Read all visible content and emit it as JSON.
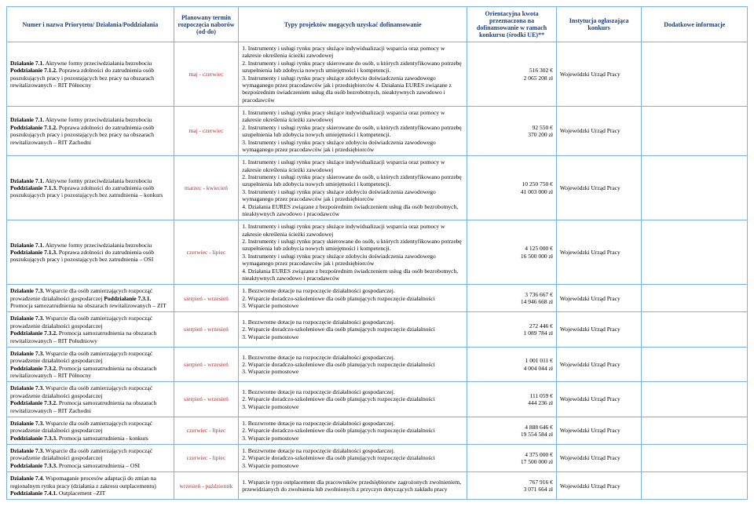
{
  "headers": {
    "c1": "Numer i nazwa Priorytetu/\nDziałania/Poddziałania",
    "c2": "Planowany termin\nrozpoczęcia naborów\n(od-do)",
    "c3": "Typy projektów mogących uzyskać dofinansowanie",
    "c4": "Orientacyjna kwota przeznaczona\nna dofinansowanie w ramach\nkonkursu (środki UE)**",
    "c5": "Instytucja ogłaszająca konkurs",
    "c6": "Dodatkowe informacje"
  },
  "rows": [
    {
      "name": "Działanie 7.1. Aktywne formy przeciwdziałania bezrobociu\nPoddziałanie 7.1.2. Poprawa zdolności do zatrudnienia osób poszukujących pracy i pozostających bez pracy na obszarach rewitalizowanych – RIT Północny",
      "term": "maj - czerwiec",
      "types": "1. Instrumenty i usługi rynku pracy służące indywidualizacji wsparcia oraz pomocy w zakresie określenia ścieżki zawodowej\n2. Instrumenty i usługi rynku pracy skierowane do osób, u których zidentyfikowano potrzebę uzupełnienia lub zdobycia nowych umiejętności i kompetencji.\n3. Instrumenty i usługi rynku pracy służące zdobyciu doświadczenia zawodowego wymaganego przez pracodawców jak i przedsiębiorców          4. Działania EURES związane z bezpośrednim świadczeniem usług dla osób bezrobotnych, nieaktywnych zawodowo i pracodawców",
      "amount": "516 302 €\n2 065 208 zł",
      "inst": "Wojewódzki Urząd Pracy",
      "extra": ""
    },
    {
      "name": "Działanie 7.1. Aktywne formy przeciwdziałania bezrobociu\nPoddziałanie 7.1.2. Poprawa zdolności do zatrudnienia osób poszukujących pracy i pozostających bez pracy na obszarach rewitalizowanych – RIT Zachodni",
      "term": "maj - czerwiec",
      "types": "1. Instrumenty i usługi rynku pracy służące indywidualizacji wsparcia oraz pomocy w zakresie określenia ścieżki zawodowej\n2. Instrumenty i usługi rynku pracy skierowane do osób, u których zidentyfikowano potrzebę uzupełnienia lub zdobycia nowych umiejętności i kompetencji.\n3. Instrumenty i usługi rynku pracy służące zdobyciu doświadczenia zawodowego wymaganego przez pracodawców jak i przedsiębiorców",
      "amount": "92 550 €\n370 200 zł",
      "inst": "Wojewódzki Urząd Pracy",
      "extra": ""
    },
    {
      "name": "Działanie 7.1. Aktywne formy przeciwdziałania bezrobociu\nPoddziałanie 7.1.3. Poprawa zdolności do zatrudnienia osób poszukujących pracy i pozostających bez zatrudnienia – konkurs",
      "term": "marzec - kwiecień",
      "types": "1. Instrumenty i usługi rynku pracy służące indywidualizacji wsparcia oraz pomocy w zakresie określenia ścieżki zawodowej\n2. Instrumenty i usługi rynku pracy skierowane do osób, u których zidentyfikowano potrzebę uzupełnienia lub zdobycia nowych umiejętności i kompetencji.\n3. Instrumenty i usługi rynku pracy służące zdobyciu doświadczenia zawodowego wymaganego przez pracodawców jak i przedsiębiorców\n4. Działania EURES związane z bezpośrednim świadczeniem usług dla osób bezrobotnych, nieaktywnych zawodowo i pracodawców",
      "amount": "10 250 750 €\n41 003 000 zł",
      "inst": "Wojewódzki Urząd Pracy",
      "extra": ""
    },
    {
      "name": "Działanie 7.1. Aktywne formy przeciwdziałania bezrobociu\nPoddziałanie 7.1.3. Poprawa zdolności do zatrudnienia osób poszukujących pracy i pozostających bez zatrudnienia – OSI",
      "term": "czerwiec - lipiec",
      "types": "1. Instrumenty i usługi rynku pracy służące indywidualizacji wsparcia oraz pomocy w zakresie określenia ścieżki zawodowej\n2. Instrumenty i usługi rynku pracy skierowane do osób, u których zidentyfikowano potrzebę uzupełnienia lub zdobycia nowych umiejętności i kompetencji.\n3. Instrumenty i usługi rynku pracy służące zdobyciu doświadczenia zawodowego wymaganego przez pracodawców jak i przedsiębiorców\n4. Działania EURES związane z bezpośrednim świadczeniem usług dla osób bezrobotnych, nieaktywnych zawodowo i pracodawców",
      "amount": "4 125 000 €\n16 500 000 zł",
      "inst": "Wojewódzki Urząd Pracy",
      "extra": ""
    },
    {
      "name": "Działanie 7.3. Wsparcie dla osób zamierzających rozpocząć prowadzenie działalności gospodarczej Poddziałanie 7.3.1. Promocja samozatrudnienia na obszarach rewitalizowanych – ZIT",
      "term": "sierpień - wrzesień",
      "types": "1. Bezzwrotne dotacje na rozpoczęcie działalności gospodarczej.\n2. Wsparcie doradczo-szkoleniowe dla osób planujących rozpoczęcie działalności\n3. Wsparcie pomostowe",
      "amount": "3 736 667 €\n14 946 668 zł",
      "inst": "Wojewódzki Urząd Pracy",
      "extra": ""
    },
    {
      "name": "Działanie 7.3. Wsparcie dla osób zamierzających rozpocząć prowadzenie działalności gospodarczej\nPoddziałanie 7.3.2. Promocja samozatrudnienia na obszarach rewitalizowanych – RIT Południowy",
      "term": "sierpień - wrzesień",
      "types": "1. Bezzwrotne dotacje na rozpoczęcie działalności gospodarczej.\n2. Wsparcie doradczo-szkoleniowe dla osób planujących rozpoczęcie działalności\n3. Wsparcie pomostowe",
      "amount": "272 446 €\n1 089 784 zł",
      "inst": "Wojewódzki Urząd Pracy",
      "extra": ""
    },
    {
      "name": "Działanie 7.3. Wsparcie dla osób zamierzających rozpocząć prowadzenie działalności gospodarczej\nPoddziałanie 7.3.2. Promocja samozatrudnienia na obszarach rewitalizowanych – RIT Północny",
      "term": "sierpień - wrzesień",
      "types": "1. Bezzwrotne dotacje na rozpoczęcie działalności gospodarczej.\n2. Wsparcie doradczo-szkoleniowe dla osób planujących rozpoczęcie działalności\n3. Wsparcie pomostowe",
      "amount": "1 001 011 €\n4 004 044 zł",
      "inst": "Wojewódzki Urząd Pracy",
      "extra": ""
    },
    {
      "name": "Działanie 7.3. Wsparcie dla osób zamierzających rozpocząć prowadzenie działalności gospodarczej\nPoddziałanie 7.3.2. Promocja samozatrudnienia na obszarach rewitalizowanych – RIT Zachodni",
      "term": "sierpień - wrzesień",
      "types": "1. Bezzwrotne dotacje na rozpoczęcie działalności gospodarczej.\n2. Wsparcie doradczo-szkoleniowe dla osób planujących rozpoczęcie działalności\n3. Wsparcie pomostowe",
      "amount": "111 059 €\n444 236 zł",
      "inst": "Wojewódzki Urząd Pracy",
      "extra": ""
    },
    {
      "name": "Działanie 7.3. Wsparcie dla osób zamierzających rozpocząć prowadzenie działalności gospodarczej\nPoddziałanie 7.3.3. Promocja samozatrudnienia - konkurs",
      "term": "czerwiec - lipiec",
      "types": "1. Bezzwrotne dotacje na rozpoczęcie działalności gospodarczej.\n2. Wsparcie doradczo-szkoleniowe dla osób planujących rozpoczęcie działalności\n3. Wsparcie pomostowe",
      "amount": "4 888 646 €\n19 554 584 zł",
      "inst": "Wojewódzki Urząd Pracy",
      "extra": ""
    },
    {
      "name": "Działanie 7.3. Wsparcie dla osób zamierzających rozpocząć prowadzenie działalności gospodarczej\nPoddziałanie 7.3.3. Promocja samozatrudnienia – OSI",
      "term": "czerwiec - lipiec",
      "types": "1. Bezzwrotne dotacje na rozpoczęcie działalności gospodarczej.\n2. Wsparcie doradczo-szkoleniowe dla osób planujących rozpoczęcie działalności\n3. Wsparcie pomostowe",
      "amount": "4 375 000 €\n17 500 000 zł",
      "inst": "Wojewódzki Urząd Pracy",
      "extra": ""
    },
    {
      "name": "Działanie 7.4. Wspomaganie procesów adaptacji do zmian na regionalnym rynku pracy (działania z zakresu outplacementu)\nPoddziałanie 7.4.1. Outplacement –ZIT",
      "term": "wrzesień - październik",
      "types": "1. Wsparcie typu outplacement dla pracowników przedsiębiorstw zagrożonych zwolnieniem, przewidzianych do zwolnienia lub zwolnionych z przyczyn dotyczących zakładu pracy",
      "amount": "767 916 €\n3 071 664 zł",
      "inst": "Wojewódzki Urząd Pracy",
      "extra": ""
    }
  ]
}
